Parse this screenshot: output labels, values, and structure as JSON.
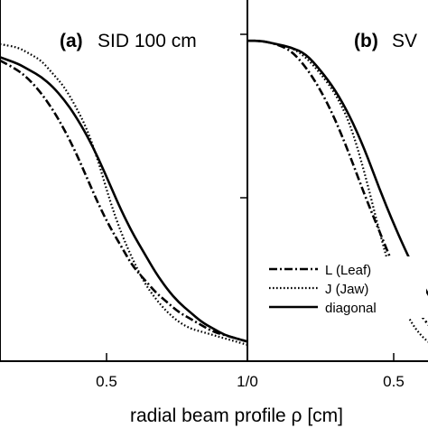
{
  "chart_data": [
    {
      "type": "line",
      "panel": "(a)",
      "title": "SID 100 cm",
      "xlabel": "radial beam profile ρ [cm]",
      "xlim": [
        -0.08,
        1.0
      ],
      "ylim": [
        0.0,
        1.0
      ],
      "x_ticks": [
        0.5
      ],
      "x_tick_labels": [
        "0.5"
      ],
      "grid": false,
      "series": [
        {
          "name": "L (Leaf)",
          "style": "dash-dot",
          "x": [
            -0.08,
            0.0,
            0.05,
            0.1,
            0.15,
            0.2,
            0.25,
            0.3,
            0.35,
            0.4,
            0.45,
            0.5,
            0.55,
            0.6,
            0.65,
            0.7,
            0.75,
            0.8,
            0.85,
            0.9,
            0.95,
            1.0
          ],
          "y": [
            0.92,
            0.89,
            0.86,
            0.82,
            0.77,
            0.71,
            0.64,
            0.56,
            0.48,
            0.41,
            0.35,
            0.29,
            0.25,
            0.21,
            0.18,
            0.15,
            0.13,
            0.11,
            0.09,
            0.08,
            0.07,
            0.06
          ]
        },
        {
          "name": "J (Jaw)",
          "style": "dotted",
          "x": [
            -0.08,
            0.0,
            0.05,
            0.1,
            0.15,
            0.2,
            0.25,
            0.3,
            0.35,
            0.4,
            0.45,
            0.5,
            0.55,
            0.6,
            0.65,
            0.7,
            0.75,
            0.8,
            0.85,
            0.9,
            0.95,
            1.0
          ],
          "y": [
            0.97,
            0.96,
            0.94,
            0.92,
            0.88,
            0.84,
            0.78,
            0.71,
            0.61,
            0.49,
            0.39,
            0.31,
            0.24,
            0.19,
            0.15,
            0.12,
            0.1,
            0.09,
            0.08,
            0.07,
            0.06,
            0.05
          ]
        },
        {
          "name": "diagonal",
          "style": "solid",
          "x": [
            -0.08,
            0.0,
            0.05,
            0.1,
            0.15,
            0.2,
            0.25,
            0.3,
            0.35,
            0.4,
            0.45,
            0.5,
            0.55,
            0.6,
            0.65,
            0.7,
            0.75,
            0.8,
            0.85,
            0.9,
            0.95,
            1.0
          ],
          "y": [
            0.93,
            0.91,
            0.89,
            0.87,
            0.84,
            0.8,
            0.75,
            0.69,
            0.62,
            0.54,
            0.46,
            0.39,
            0.33,
            0.27,
            0.22,
            0.18,
            0.15,
            0.12,
            0.1,
            0.08,
            0.07,
            0.06
          ]
        }
      ]
    },
    {
      "type": "line",
      "panel": "(b)",
      "title": "SV",
      "xlabel": "radial beam profile ρ [cm]",
      "xlim": [
        0.0,
        1.0
      ],
      "ylim": [
        0.0,
        1.0
      ],
      "x_ticks": [
        0.0,
        0.5
      ],
      "x_tick_labels": [
        "0",
        "0.5"
      ],
      "grid": false,
      "legend": {
        "location": "lower-right",
        "entries": [
          "L (Leaf)",
          "J (Jaw)",
          "diagonal"
        ]
      },
      "series": [
        {
          "name": "L (Leaf)",
          "style": "dash-dot",
          "x": [
            0.0,
            0.05,
            0.1,
            0.15,
            0.2,
            0.25,
            0.3,
            0.35,
            0.4,
            0.45,
            0.5,
            0.55,
            0.6,
            0.65,
            0.7
          ],
          "y": [
            0.98,
            0.98,
            0.97,
            0.95,
            0.9,
            0.83,
            0.74,
            0.63,
            0.51,
            0.4,
            0.29,
            0.2,
            0.13,
            0.08,
            0.05
          ]
        },
        {
          "name": "J (Jaw)",
          "style": "dotted",
          "x": [
            0.0,
            0.05,
            0.1,
            0.15,
            0.2,
            0.25,
            0.3,
            0.35,
            0.4,
            0.45,
            0.5,
            0.55,
            0.6,
            0.65,
            0.7
          ],
          "y": [
            0.98,
            0.98,
            0.97,
            0.96,
            0.93,
            0.88,
            0.82,
            0.73,
            0.58,
            0.4,
            0.24,
            0.13,
            0.07,
            0.04,
            0.03
          ]
        },
        {
          "name": "diagonal",
          "style": "solid",
          "x": [
            0.0,
            0.05,
            0.1,
            0.15,
            0.2,
            0.25,
            0.3,
            0.35,
            0.4,
            0.45,
            0.5,
            0.55,
            0.6,
            0.65,
            0.7
          ],
          "y": [
            0.98,
            0.98,
            0.97,
            0.96,
            0.94,
            0.89,
            0.83,
            0.75,
            0.65,
            0.53,
            0.42,
            0.32,
            0.23,
            0.16,
            0.11
          ]
        }
      ]
    }
  ],
  "bottom_tick_labels": [
    "0.5",
    "1/0",
    "0.5"
  ],
  "axis_title": "radial beam profile ρ [cm]",
  "legend": {
    "entries": [
      "L (Leaf)",
      "J (Jaw)",
      "diagonal"
    ]
  },
  "panel_a": {
    "tag": "(a)",
    "text": "SID 100 cm"
  },
  "panel_b": {
    "tag": "(b)",
    "text": "SV"
  }
}
